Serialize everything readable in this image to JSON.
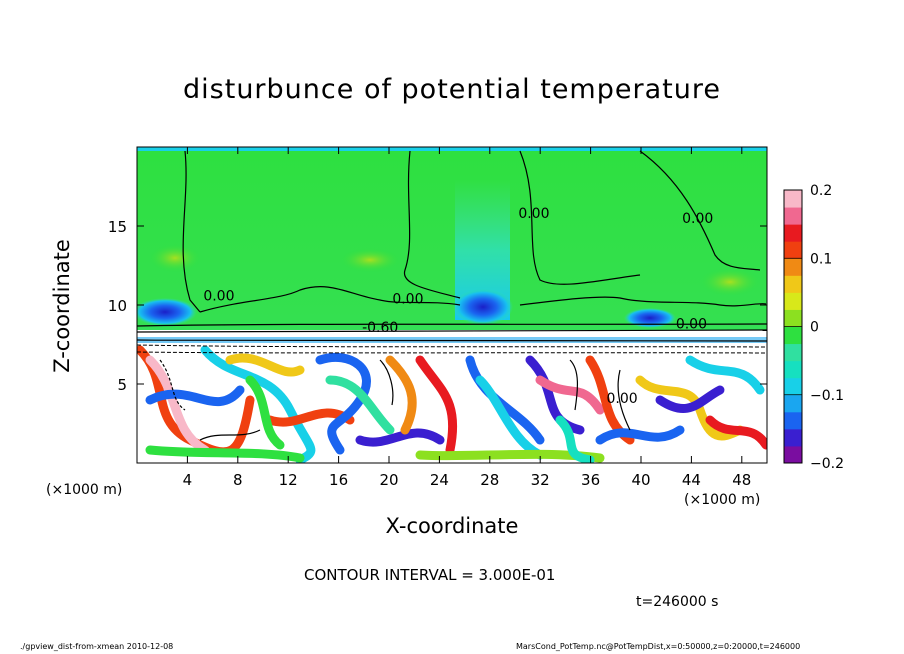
{
  "chart_data": {
    "type": "heatmap",
    "title": "disturbunce of potential temperature",
    "xlabel": "X-coordinate",
    "ylabel": "Z-coordinate",
    "x_unit_left": "(×1000 m)",
    "x_unit_right": "(×1000 m)",
    "xlim": [
      0,
      50
    ],
    "ylim": [
      0,
      20
    ],
    "x_ticks": [
      4,
      8,
      12,
      16,
      20,
      24,
      28,
      32,
      36,
      40,
      44,
      48
    ],
    "y_ticks": [
      5,
      10,
      15
    ],
    "colorbar": {
      "min": -0.2,
      "max": 0.2,
      "ticks": [
        {
          "value": 0.2,
          "label": "0.2"
        },
        {
          "value": 0.1,
          "label": "0.1"
        },
        {
          "value": 0,
          "label": "0"
        },
        {
          "value": -0.1,
          "label": "−0.1"
        },
        {
          "value": -0.2,
          "label": "−0.2"
        }
      ],
      "colors": [
        "#7a0da0",
        "#3a1fd0",
        "#1a64f0",
        "#1aa6f0",
        "#18d0e8",
        "#16e0c0",
        "#30e0a0",
        "#2ee040",
        "#8ce020",
        "#d8e81a",
        "#f0c818",
        "#f08a14",
        "#f04010",
        "#e81a20",
        "#f06890",
        "#f8b8c8"
      ]
    },
    "contour_labels": [
      {
        "x": 6.5,
        "z": 10.3,
        "text": "0.00"
      },
      {
        "x": 21.5,
        "z": 10.1,
        "text": "0.00"
      },
      {
        "x": 19.3,
        "z": 8.3,
        "text": "-0.60"
      },
      {
        "x": 31.5,
        "z": 15.5,
        "text": "0.00"
      },
      {
        "x": 44.5,
        "z": 15.2,
        "text": "0.00"
      },
      {
        "x": 44.0,
        "z": 8.5,
        "text": "0.00"
      },
      {
        "x": 38.5,
        "z": 3.8,
        "text": "0.00"
      }
    ],
    "contour_interval": "CONTOUR INTERVAL = 3.000E-01",
    "time_label": "t=246000 s",
    "footer_left": "./gpview_dist-from-xmean  2010-12-08",
    "footer_right": "MarsCond_PotTemp.nc@PotTempDist,x=0:50000,z=0:20000,t=246000"
  }
}
